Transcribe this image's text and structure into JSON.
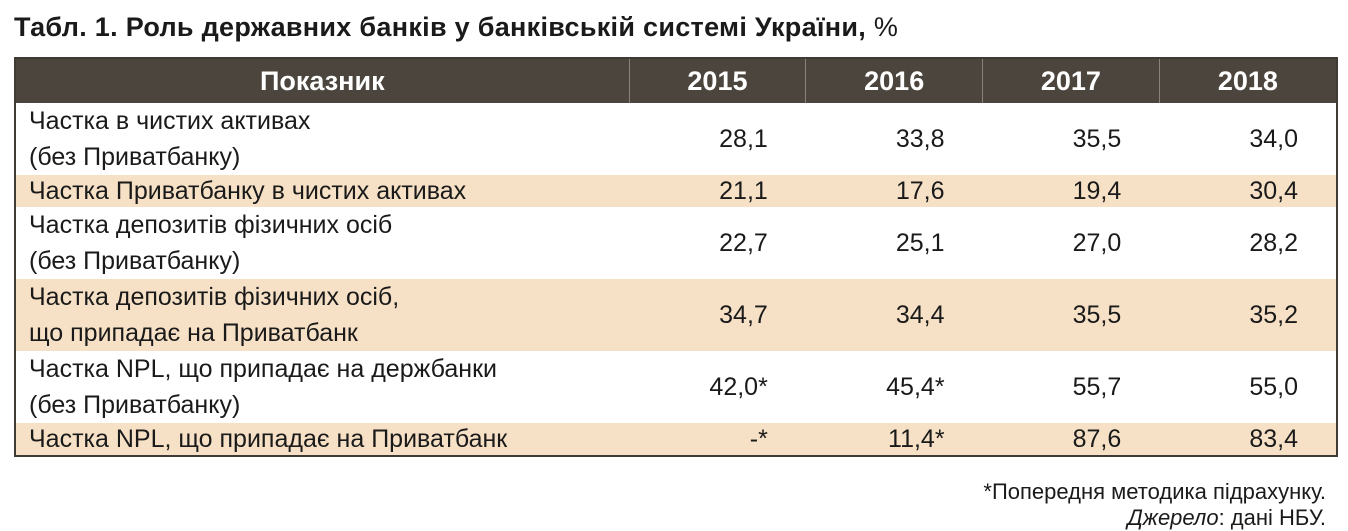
{
  "title": "Табл. 1. Роль державних банків у банківській системі України,",
  "unit": "%",
  "table": {
    "header": [
      "Показник",
      "2015",
      "2016",
      "2017",
      "2018"
    ],
    "rows": [
      {
        "label": [
          "Частка в чистих активах",
          "(без Приватбанку)"
        ],
        "values": [
          "28,1",
          "33,8",
          "35,5",
          "34,0"
        ]
      },
      {
        "label": [
          "Частка Приватбанку в чистих активах"
        ],
        "values": [
          "21,1",
          "17,6",
          "19,4",
          "30,4"
        ]
      },
      {
        "label": [
          "Частка депозитів фізичних осіб",
          "(без Приватбанку)"
        ],
        "values": [
          "22,7",
          "25,1",
          "27,0",
          "28,2"
        ]
      },
      {
        "label": [
          "Частка депозитів фізичних осіб,",
          "що припадає на Приватбанк"
        ],
        "values": [
          "34,7",
          "34,4",
          "35,5",
          "35,2"
        ]
      },
      {
        "label": [
          "Частка NPL, що припадає на держбанки",
          "(без Приватбанку)"
        ],
        "values": [
          "42,0*",
          "45,4*",
          "55,7",
          "55,0"
        ]
      },
      {
        "label": [
          "Частка NPL, що припадає на Приватбанк"
        ],
        "values": [
          "-*",
          "11,4*",
          "87,6",
          "83,4"
        ]
      }
    ]
  },
  "footnote": "*Попередня методика підрахунку.",
  "source_label": "Джерело",
  "source_text": ": дані НБУ."
}
